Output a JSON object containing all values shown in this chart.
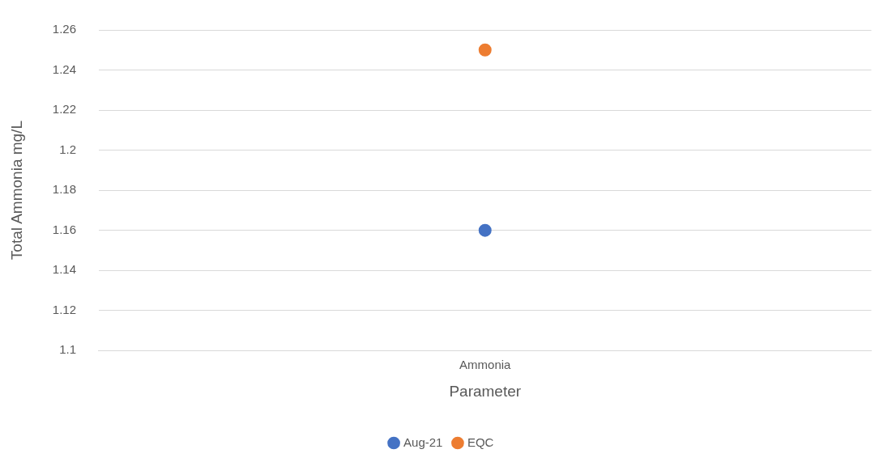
{
  "chart_data": {
    "type": "line",
    "xlabel": "Parameter",
    "ylabel": "Total Ammonia mg/L",
    "categories": [
      "Ammonia"
    ],
    "series": [
      {
        "name": "Aug-21",
        "color": "#4472c4",
        "values": [
          1.16
        ]
      },
      {
        "name": "EQC",
        "color": "#ed7d31",
        "values": [
          1.25
        ]
      }
    ],
    "ylim": [
      1.1,
      1.26
    ],
    "yticks": [
      1.1,
      1.12,
      1.14,
      1.16,
      1.18,
      1.2,
      1.22,
      1.24,
      1.26
    ],
    "grid": "y",
    "legend": "bottom",
    "marker": "circle"
  }
}
